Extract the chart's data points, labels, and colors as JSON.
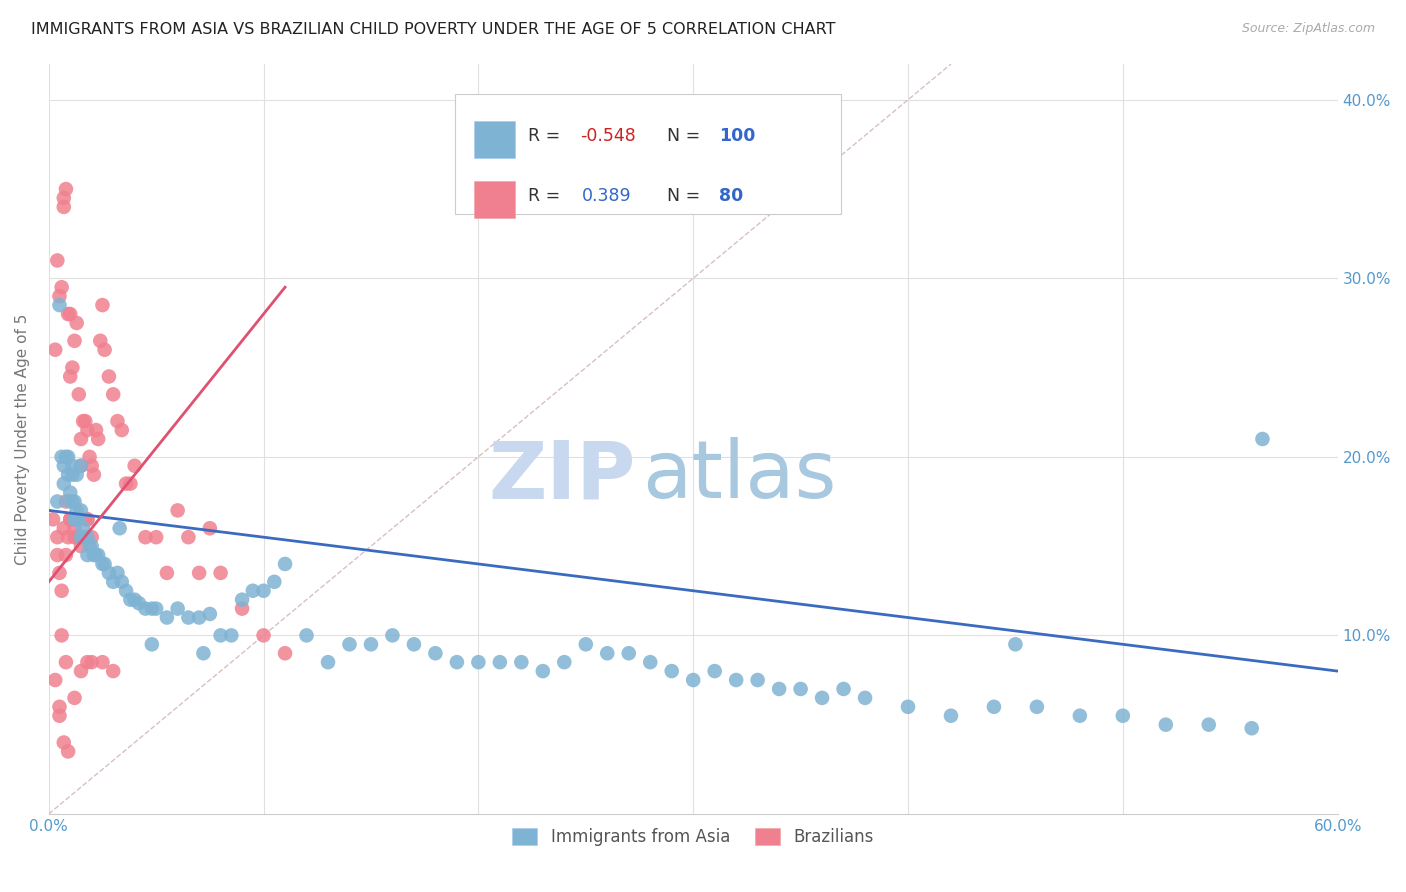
{
  "title": "IMMIGRANTS FROM ASIA VS BRAZILIAN CHILD POVERTY UNDER THE AGE OF 5 CORRELATION CHART",
  "source": "Source: ZipAtlas.com",
  "ylabel": "Child Poverty Under the Age of 5",
  "watermark_zip": "ZIP",
  "watermark_atlas": "atlas",
  "xlim": [
    0.0,
    0.6
  ],
  "ylim": [
    0.0,
    0.42
  ],
  "blue_scatter_x": [
    0.004,
    0.005,
    0.006,
    0.007,
    0.008,
    0.009,
    0.01,
    0.01,
    0.011,
    0.011,
    0.012,
    0.012,
    0.013,
    0.013,
    0.014,
    0.015,
    0.015,
    0.016,
    0.017,
    0.018,
    0.018,
    0.019,
    0.02,
    0.021,
    0.022,
    0.023,
    0.025,
    0.026,
    0.028,
    0.03,
    0.032,
    0.034,
    0.036,
    0.038,
    0.04,
    0.042,
    0.045,
    0.048,
    0.05,
    0.055,
    0.06,
    0.065,
    0.07,
    0.075,
    0.08,
    0.085,
    0.09,
    0.095,
    0.1,
    0.105,
    0.11,
    0.12,
    0.13,
    0.14,
    0.15,
    0.16,
    0.17,
    0.18,
    0.19,
    0.2,
    0.21,
    0.22,
    0.23,
    0.24,
    0.25,
    0.26,
    0.27,
    0.28,
    0.29,
    0.3,
    0.31,
    0.32,
    0.33,
    0.34,
    0.35,
    0.36,
    0.37,
    0.38,
    0.4,
    0.42,
    0.44,
    0.46,
    0.48,
    0.5,
    0.52,
    0.54,
    0.56,
    0.007,
    0.009,
    0.011,
    0.013,
    0.015,
    0.033,
    0.048,
    0.072,
    0.45,
    0.565
  ],
  "blue_scatter_y": [
    0.175,
    0.285,
    0.2,
    0.195,
    0.2,
    0.2,
    0.175,
    0.18,
    0.175,
    0.195,
    0.165,
    0.175,
    0.17,
    0.165,
    0.165,
    0.17,
    0.155,
    0.16,
    0.155,
    0.155,
    0.145,
    0.15,
    0.15,
    0.145,
    0.145,
    0.145,
    0.14,
    0.14,
    0.135,
    0.13,
    0.135,
    0.13,
    0.125,
    0.12,
    0.12,
    0.118,
    0.115,
    0.115,
    0.115,
    0.11,
    0.115,
    0.11,
    0.11,
    0.112,
    0.1,
    0.1,
    0.12,
    0.125,
    0.125,
    0.13,
    0.14,
    0.1,
    0.085,
    0.095,
    0.095,
    0.1,
    0.095,
    0.09,
    0.085,
    0.085,
    0.085,
    0.085,
    0.08,
    0.085,
    0.095,
    0.09,
    0.09,
    0.085,
    0.08,
    0.075,
    0.08,
    0.075,
    0.075,
    0.07,
    0.07,
    0.065,
    0.07,
    0.065,
    0.06,
    0.055,
    0.06,
    0.06,
    0.055,
    0.055,
    0.05,
    0.05,
    0.048,
    0.185,
    0.19,
    0.19,
    0.19,
    0.195,
    0.16,
    0.095,
    0.09,
    0.095,
    0.21
  ],
  "pink_scatter_x": [
    0.002,
    0.003,
    0.004,
    0.004,
    0.005,
    0.005,
    0.006,
    0.006,
    0.007,
    0.007,
    0.007,
    0.008,
    0.008,
    0.008,
    0.009,
    0.009,
    0.01,
    0.01,
    0.01,
    0.011,
    0.011,
    0.012,
    0.012,
    0.013,
    0.013,
    0.014,
    0.014,
    0.015,
    0.015,
    0.016,
    0.017,
    0.018,
    0.018,
    0.019,
    0.02,
    0.021,
    0.022,
    0.023,
    0.024,
    0.025,
    0.026,
    0.028,
    0.03,
    0.032,
    0.034,
    0.036,
    0.038,
    0.04,
    0.045,
    0.05,
    0.055,
    0.06,
    0.065,
    0.07,
    0.075,
    0.08,
    0.09,
    0.1,
    0.11,
    0.004,
    0.005,
    0.006,
    0.008,
    0.01,
    0.012,
    0.015,
    0.018,
    0.02,
    0.003,
    0.005,
    0.007,
    0.009,
    0.012,
    0.015,
    0.018,
    0.02,
    0.025,
    0.03
  ],
  "pink_scatter_y": [
    0.165,
    0.26,
    0.31,
    0.155,
    0.06,
    0.29,
    0.295,
    0.1,
    0.34,
    0.345,
    0.16,
    0.35,
    0.175,
    0.085,
    0.28,
    0.155,
    0.28,
    0.245,
    0.165,
    0.25,
    0.165,
    0.265,
    0.155,
    0.275,
    0.155,
    0.235,
    0.165,
    0.21,
    0.195,
    0.22,
    0.22,
    0.215,
    0.165,
    0.2,
    0.195,
    0.19,
    0.215,
    0.21,
    0.265,
    0.285,
    0.26,
    0.245,
    0.235,
    0.22,
    0.215,
    0.185,
    0.185,
    0.195,
    0.155,
    0.155,
    0.135,
    0.17,
    0.155,
    0.135,
    0.16,
    0.135,
    0.115,
    0.1,
    0.09,
    0.145,
    0.135,
    0.125,
    0.145,
    0.165,
    0.16,
    0.15,
    0.165,
    0.155,
    0.075,
    0.055,
    0.04,
    0.035,
    0.065,
    0.08,
    0.085,
    0.085,
    0.085,
    0.08
  ],
  "blue_line_x": [
    0.0,
    0.6
  ],
  "blue_line_y": [
    0.17,
    0.08
  ],
  "pink_line_x": [
    0.0,
    0.11
  ],
  "pink_line_y": [
    0.13,
    0.295
  ],
  "ref_line_x": [
    0.0,
    0.42
  ],
  "ref_line_y": [
    0.0,
    0.42
  ],
  "blue_dot_color": "#7fb3d3",
  "pink_dot_color": "#f08090",
  "blue_line_color": "#3a6bbf",
  "pink_line_color": "#e05070",
  "ref_line_color": "#d0b0b0",
  "grid_color": "#e0e0e0",
  "title_color": "#222222",
  "axis_label_color": "#5599cc",
  "background_color": "#ffffff",
  "watermark_color_zip": "#c8d8ee",
  "watermark_color_atlas": "#a8c8e0",
  "title_fontsize": 11.5,
  "source_fontsize": 9
}
